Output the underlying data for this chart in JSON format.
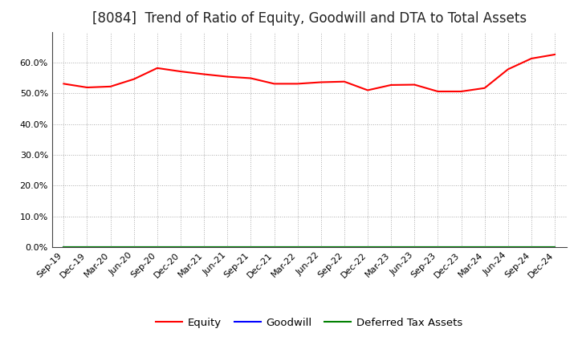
{
  "title": "[8084]  Trend of Ratio of Equity, Goodwill and DTA to Total Assets",
  "x_labels": [
    "Sep-19",
    "Dec-19",
    "Mar-20",
    "Jun-20",
    "Sep-20",
    "Dec-20",
    "Mar-21",
    "Jun-21",
    "Sep-21",
    "Dec-21",
    "Mar-22",
    "Jun-22",
    "Sep-22",
    "Dec-22",
    "Mar-23",
    "Jun-23",
    "Sep-23",
    "Dec-23",
    "Mar-24",
    "Jun-24",
    "Sep-24",
    "Dec-24"
  ],
  "equity": [
    0.531,
    0.519,
    0.522,
    0.546,
    0.582,
    0.571,
    0.562,
    0.554,
    0.549,
    0.531,
    0.531,
    0.536,
    0.538,
    0.51,
    0.527,
    0.528,
    0.506,
    0.506,
    0.517,
    0.578,
    0.613,
    0.626
  ],
  "goodwill": [
    0.0,
    0.0,
    0.0,
    0.0,
    0.0,
    0.0,
    0.0,
    0.0,
    0.0,
    0.0,
    0.0,
    0.0,
    0.0,
    0.0,
    0.0,
    0.0,
    0.0,
    0.0,
    0.0,
    0.0,
    0.0,
    0.0
  ],
  "dta": [
    0.0,
    0.0,
    0.0,
    0.0,
    0.0,
    0.0,
    0.0,
    0.0,
    0.0,
    0.0,
    0.0,
    0.0,
    0.0,
    0.0,
    0.0,
    0.0,
    0.0,
    0.0,
    0.0,
    0.0,
    0.0,
    0.0
  ],
  "equity_color": "#ff0000",
  "goodwill_color": "#0000ff",
  "dta_color": "#008000",
  "ylim": [
    0.0,
    0.7
  ],
  "yticks": [
    0.0,
    0.1,
    0.2,
    0.3,
    0.4,
    0.5,
    0.6
  ],
  "background_color": "#ffffff",
  "plot_bg_color": "#ffffff",
  "grid_color": "#aaaaaa",
  "title_fontsize": 12,
  "tick_fontsize": 8,
  "legend_fontsize": 9.5
}
